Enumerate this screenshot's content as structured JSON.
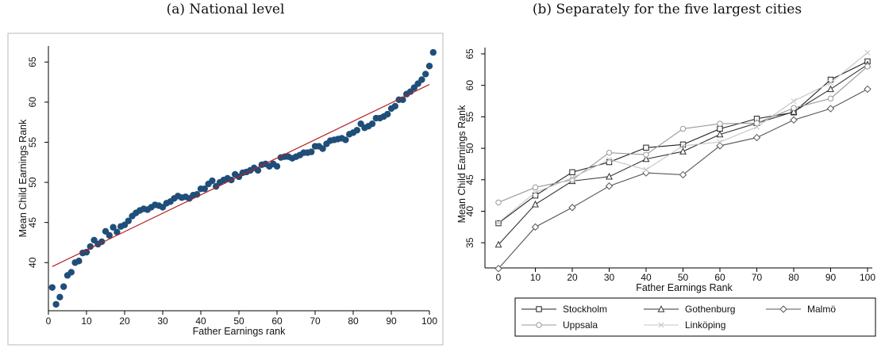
{
  "panel_a": {
    "caption": "(a) National level",
    "chart_data": {
      "type": "scatter",
      "title": "(a) National level",
      "xlabel": "Father Earnings rank",
      "ylabel": "Mean Child Earnings Rank",
      "xlim": [
        0,
        100
      ],
      "ylim": [
        34,
        67
      ],
      "x_ticks": [
        0,
        10,
        20,
        30,
        40,
        50,
        60,
        70,
        80,
        90,
        100
      ],
      "y_ticks": [
        40,
        45,
        50,
        55,
        60,
        65
      ],
      "grid": false,
      "marker_color": "#1f4e79",
      "fit_line_color": "#b22222",
      "fit_line": {
        "x": [
          1,
          100
        ],
        "y": [
          39.5,
          62.2
        ]
      },
      "points": [
        [
          1,
          36.9
        ],
        [
          2,
          34.8
        ],
        [
          3,
          35.7
        ],
        [
          4,
          37.0
        ],
        [
          5,
          38.4
        ],
        [
          6,
          38.8
        ],
        [
          7,
          40.0
        ],
        [
          8,
          40.2
        ],
        [
          9,
          41.2
        ],
        [
          10,
          41.3
        ],
        [
          11,
          42.0
        ],
        [
          12,
          42.8
        ],
        [
          13,
          42.3
        ],
        [
          14,
          42.6
        ],
        [
          15,
          43.9
        ],
        [
          16,
          43.4
        ],
        [
          17,
          44.4
        ],
        [
          18,
          43.8
        ],
        [
          19,
          44.5
        ],
        [
          20,
          44.7
        ],
        [
          21,
          45.2
        ],
        [
          22,
          45.8
        ],
        [
          23,
          46.2
        ],
        [
          24,
          46.5
        ],
        [
          25,
          46.7
        ],
        [
          26,
          46.6
        ],
        [
          27,
          46.9
        ],
        [
          28,
          47.2
        ],
        [
          29,
          47.1
        ],
        [
          30,
          46.9
        ],
        [
          31,
          47.4
        ],
        [
          32,
          47.6
        ],
        [
          33,
          48.0
        ],
        [
          34,
          48.3
        ],
        [
          35,
          48.1
        ],
        [
          36,
          48.2
        ],
        [
          37,
          48.0
        ],
        [
          38,
          48.4
        ],
        [
          39,
          48.5
        ],
        [
          40,
          49.2
        ],
        [
          41,
          49.2
        ],
        [
          42,
          49.8
        ],
        [
          43,
          50.2
        ],
        [
          44,
          49.5
        ],
        [
          45,
          50.0
        ],
        [
          46,
          50.3
        ],
        [
          47,
          50.5
        ],
        [
          48,
          50.3
        ],
        [
          49,
          51.0
        ],
        [
          50,
          50.7
        ],
        [
          51,
          51.2
        ],
        [
          52,
          51.3
        ],
        [
          53,
          51.5
        ],
        [
          54,
          51.8
        ],
        [
          55,
          51.5
        ],
        [
          56,
          52.2
        ],
        [
          57,
          52.3
        ],
        [
          58,
          52.0
        ],
        [
          59,
          52.3
        ],
        [
          60,
          52.0
        ],
        [
          61,
          53.1
        ],
        [
          62,
          53.2
        ],
        [
          63,
          53.2
        ],
        [
          64,
          53.0
        ],
        [
          65,
          53.2
        ],
        [
          66,
          53.4
        ],
        [
          67,
          53.7
        ],
        [
          68,
          53.7
        ],
        [
          69,
          53.8
        ],
        [
          70,
          54.5
        ],
        [
          71,
          54.5
        ],
        [
          72,
          54.2
        ],
        [
          73,
          54.8
        ],
        [
          74,
          55.2
        ],
        [
          75,
          55.3
        ],
        [
          76,
          55.4
        ],
        [
          77,
          55.5
        ],
        [
          78,
          55.3
        ],
        [
          79,
          56.0
        ],
        [
          80,
          56.2
        ],
        [
          81,
          56.5
        ],
        [
          82,
          57.3
        ],
        [
          83,
          56.8
        ],
        [
          84,
          57.0
        ],
        [
          85,
          57.3
        ],
        [
          86,
          58.0
        ],
        [
          87,
          58.0
        ],
        [
          88,
          58.2
        ],
        [
          89,
          58.5
        ],
        [
          90,
          59.2
        ],
        [
          91,
          59.5
        ],
        [
          92,
          60.3
        ],
        [
          93,
          60.3
        ],
        [
          94,
          61.0
        ],
        [
          95,
          61.3
        ],
        [
          96,
          61.8
        ],
        [
          97,
          62.3
        ],
        [
          98,
          62.8
        ],
        [
          99,
          63.5
        ],
        [
          100,
          64.5
        ],
        [
          101,
          66.2
        ]
      ]
    }
  },
  "panel_b": {
    "caption": "(b) Separately for the five largest cities",
    "chart_data": {
      "type": "line",
      "title": "(b) Separately for the five largest cities",
      "xlabel": "Father Earnings Rank",
      "ylabel": "Mean Child Earnings Rank",
      "xlim": [
        0,
        100
      ],
      "ylim": [
        31,
        66
      ],
      "x_ticks": [
        0,
        10,
        20,
        30,
        40,
        50,
        60,
        70,
        80,
        90,
        100
      ],
      "y_ticks": [
        35,
        40,
        45,
        50,
        55,
        60,
        65
      ],
      "grid": false,
      "legend_position": "bottom",
      "x": [
        0,
        10,
        20,
        30,
        40,
        50,
        60,
        70,
        80,
        90,
        100
      ],
      "series": [
        {
          "name": "Stockholm",
          "marker": "square",
          "color": "#222222",
          "values": [
            38.1,
            42.5,
            46.2,
            47.8,
            50.1,
            50.6,
            53.1,
            54.7,
            55.7,
            60.9,
            63.8
          ]
        },
        {
          "name": "Gothenburg",
          "marker": "triangle",
          "color": "#333333",
          "values": [
            34.7,
            41.1,
            44.8,
            45.5,
            48.3,
            49.5,
            52.2,
            54.0,
            55.8,
            59.4,
            63.3
          ]
        },
        {
          "name": "Malmö",
          "marker": "diamond",
          "color": "#555555",
          "values": [
            30.9,
            37.5,
            40.6,
            44.0,
            46.1,
            45.8,
            50.4,
            51.7,
            54.5,
            56.3,
            59.4
          ]
        },
        {
          "name": "Uppsala",
          "marker": "circle",
          "color": "#999999",
          "values": [
            41.4,
            43.8,
            45.0,
            49.3,
            49.0,
            53.1,
            53.9,
            54.0,
            56.4,
            57.9,
            63.0
          ]
        },
        {
          "name": "Linköping",
          "marker": "x",
          "color": "#c4c4c4",
          "values": [
            38.2,
            43.0,
            45.3,
            48.2,
            46.6,
            50.4,
            51.0,
            53.4,
            57.5,
            60.4,
            65.2
          ]
        }
      ]
    }
  }
}
